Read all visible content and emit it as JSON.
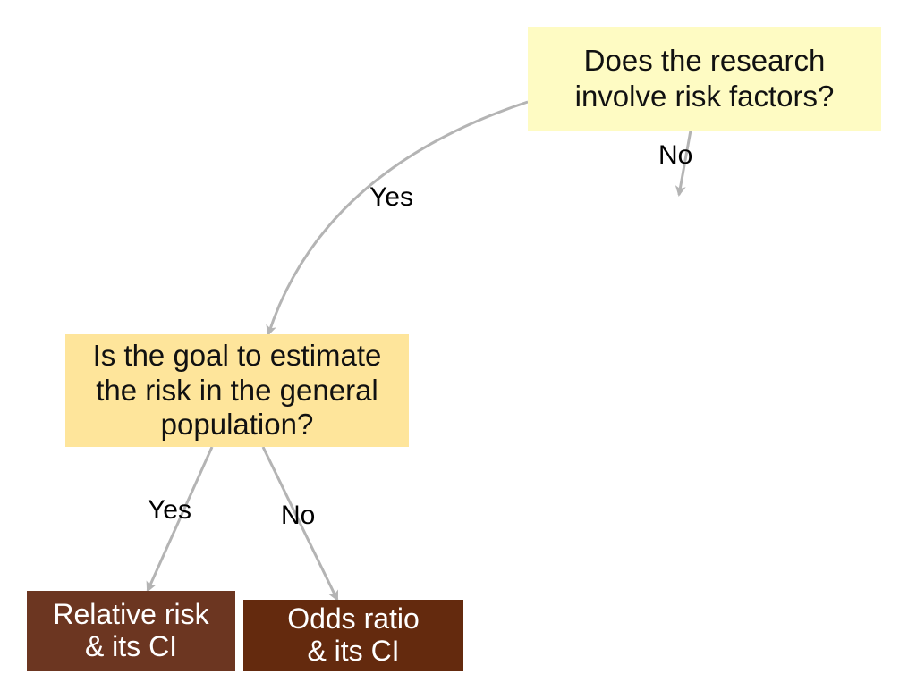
{
  "nodes": {
    "q1": {
      "lines": [
        "Does the research",
        "involve risk factors?"
      ]
    },
    "q2": {
      "lines": [
        "Is the goal to estimate",
        "the risk in the general",
        "population?"
      ]
    },
    "relative_risk": {
      "lines": [
        "Relative risk",
        "& its CI"
      ]
    },
    "odds_ratio": {
      "lines": [
        "Odds ratio",
        "& its CI"
      ]
    }
  },
  "edges": {
    "q1_no": "No",
    "q1_yes": "Yes",
    "q2_yes": "Yes",
    "q2_no": "No"
  },
  "colors": {
    "q1_fill": "#fefbc3",
    "q2_fill": "#fee59b",
    "relative_risk_fill": "#6c3621",
    "odds_ratio_fill": "#642a0e",
    "arrow": "#b4b4b4"
  }
}
